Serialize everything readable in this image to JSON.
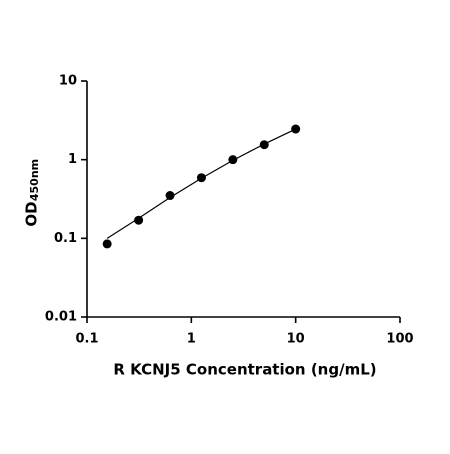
{
  "chart_data": {
    "type": "scatter",
    "x_label": "R KCNJ5 Concentration (ng/mL)",
    "y_label": "OD",
    "y_label_subscript": "450nm",
    "x": [
      0.156,
      0.3125,
      0.625,
      1.25,
      2.5,
      5,
      10
    ],
    "values": [
      0.085,
      0.17,
      0.35,
      0.59,
      1.0,
      1.55,
      2.45
    ],
    "color": "#000000",
    "curve": {
      "x": [
        0.156,
        0.3125,
        0.625,
        1.25,
        2.5,
        5,
        10
      ],
      "values": [
        0.1,
        0.18,
        0.33,
        0.58,
        0.98,
        1.58,
        2.45
      ]
    },
    "xscale": "log",
    "yscale": "log",
    "xlim": [
      0.1,
      100
    ],
    "xticks": [
      0.1,
      1,
      10,
      100
    ],
    "ylim": [
      0.01,
      10
    ],
    "yticks": [
      0.01,
      0.1,
      1,
      10
    ]
  }
}
